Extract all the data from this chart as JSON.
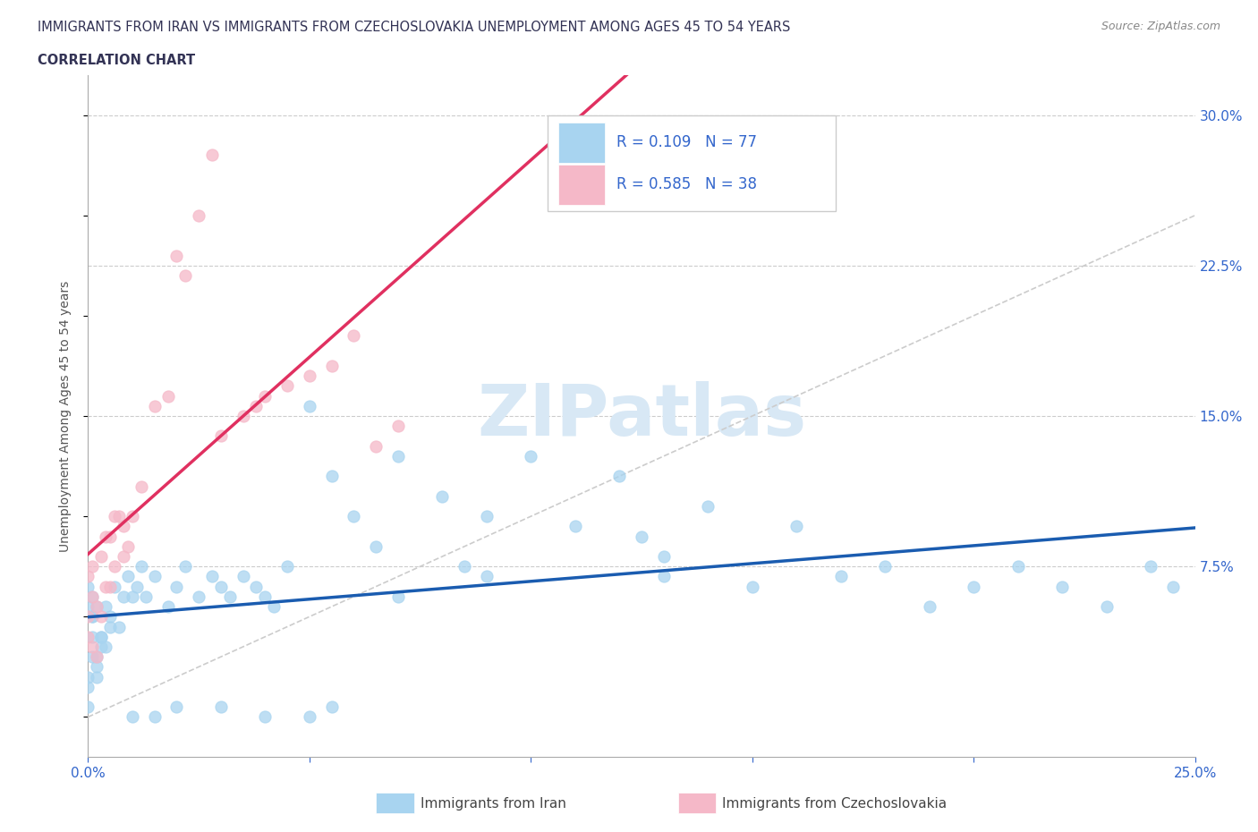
{
  "title_line1": "IMMIGRANTS FROM IRAN VS IMMIGRANTS FROM CZECHOSLOVAKIA UNEMPLOYMENT AMONG AGES 45 TO 54 YEARS",
  "title_line2": "CORRELATION CHART",
  "source_text": "Source: ZipAtlas.com",
  "ylabel": "Unemployment Among Ages 45 to 54 years",
  "xlim": [
    0.0,
    0.25
  ],
  "ylim": [
    -0.02,
    0.32
  ],
  "xticks": [
    0.0,
    0.05,
    0.1,
    0.15,
    0.2,
    0.25
  ],
  "xticklabels": [
    "0.0%",
    "",
    "",
    "",
    "",
    "25.0%"
  ],
  "yticks_right": [
    0.0,
    0.075,
    0.15,
    0.225,
    0.3
  ],
  "yticklabels_right": [
    "",
    "7.5%",
    "15.0%",
    "22.5%",
    "30.0%"
  ],
  "iran_R": 0.109,
  "iran_N": 77,
  "czech_R": 0.585,
  "czech_N": 38,
  "iran_color": "#A8D4F0",
  "czech_color": "#F5B8C8",
  "iran_line_color": "#1A5CB0",
  "czech_line_color": "#E03060",
  "diagonal_color": "#CCCCCC",
  "watermark_color": "#D8E8F5",
  "watermark": "ZIPatlas",
  "title_color": "#333355",
  "axis_label_color": "#3366CC",
  "legend_label_iran": "Immigrants from Iran",
  "legend_label_czech": "Immigrants from Czechoslovakia",
  "iran_x": [
    0.001,
    0.002,
    0.0,
    0.003,
    0.001,
    0.0,
    0.005,
    0.002,
    0.001,
    0.0,
    0.003,
    0.001,
    0.0,
    0.002,
    0.004,
    0.001,
    0.0,
    0.003,
    0.002,
    0.005,
    0.008,
    0.006,
    0.004,
    0.009,
    0.007,
    0.01,
    0.012,
    0.011,
    0.015,
    0.013,
    0.018,
    0.02,
    0.022,
    0.025,
    0.028,
    0.03,
    0.032,
    0.035,
    0.038,
    0.04,
    0.042,
    0.045,
    0.05,
    0.055,
    0.06,
    0.065,
    0.07,
    0.08,
    0.085,
    0.09,
    0.1,
    0.11,
    0.12,
    0.125,
    0.13,
    0.14,
    0.15,
    0.16,
    0.17,
    0.18,
    0.19,
    0.2,
    0.21,
    0.22,
    0.23,
    0.24,
    0.245,
    0.13,
    0.09,
    0.07,
    0.05,
    0.03,
    0.015,
    0.055,
    0.04,
    0.02,
    0.01
  ],
  "iran_y": [
    0.04,
    0.03,
    0.02,
    0.035,
    0.05,
    0.015,
    0.045,
    0.025,
    0.06,
    0.055,
    0.04,
    0.03,
    0.005,
    0.02,
    0.035,
    0.05,
    0.065,
    0.04,
    0.055,
    0.05,
    0.06,
    0.065,
    0.055,
    0.07,
    0.045,
    0.06,
    0.075,
    0.065,
    0.07,
    0.06,
    0.055,
    0.065,
    0.075,
    0.06,
    0.07,
    0.065,
    0.06,
    0.07,
    0.065,
    0.06,
    0.055,
    0.075,
    0.155,
    0.12,
    0.1,
    0.085,
    0.13,
    0.11,
    0.075,
    0.1,
    0.13,
    0.095,
    0.12,
    0.09,
    0.07,
    0.105,
    0.065,
    0.095,
    0.07,
    0.075,
    0.055,
    0.065,
    0.075,
    0.065,
    0.055,
    0.075,
    0.065,
    0.08,
    0.07,
    0.06,
    0.0,
    0.005,
    0.0,
    0.005,
    0.0,
    0.005,
    0.0
  ],
  "czech_x": [
    0.0,
    0.001,
    0.002,
    0.0,
    0.001,
    0.0,
    0.003,
    0.002,
    0.004,
    0.001,
    0.005,
    0.003,
    0.006,
    0.004,
    0.008,
    0.005,
    0.007,
    0.006,
    0.009,
    0.008,
    0.01,
    0.012,
    0.015,
    0.018,
    0.02,
    0.022,
    0.025,
    0.028,
    0.03,
    0.035,
    0.038,
    0.04,
    0.045,
    0.05,
    0.055,
    0.06,
    0.065,
    0.07
  ],
  "czech_y": [
    0.04,
    0.035,
    0.03,
    0.05,
    0.06,
    0.07,
    0.05,
    0.055,
    0.065,
    0.075,
    0.065,
    0.08,
    0.075,
    0.09,
    0.08,
    0.09,
    0.1,
    0.1,
    0.085,
    0.095,
    0.1,
    0.115,
    0.155,
    0.16,
    0.23,
    0.22,
    0.25,
    0.28,
    0.14,
    0.15,
    0.155,
    0.16,
    0.165,
    0.17,
    0.175,
    0.19,
    0.135,
    0.145
  ]
}
